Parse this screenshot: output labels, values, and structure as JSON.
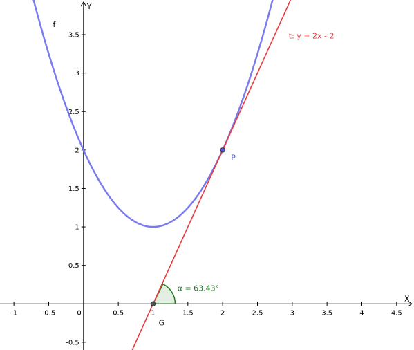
{
  "chart_data": {
    "type": "line",
    "xlabel": "X",
    "ylabel": "Y",
    "xlim": [
      -1.2,
      4.75
    ],
    "ylim": [
      -0.6,
      3.95
    ],
    "x_ticks": [
      "-1",
      "-0.5",
      "0",
      "0.5",
      "1",
      "1.5",
      "2",
      "2.5",
      "3",
      "3.5",
      "4",
      "4.5"
    ],
    "y_ticks": [
      "-0.5",
      "0.5",
      "1",
      "1.5",
      "2",
      "2.5",
      "3",
      "3.5"
    ],
    "series": [
      {
        "name": "f",
        "color": "#7b7bf0",
        "a": 1,
        "h": 1,
        "k": 1
      },
      {
        "name": "t: y = 2x - 2",
        "color": "#e83a3a",
        "slope": 2,
        "intercept": -2
      }
    ],
    "points": [
      {
        "name": "P",
        "x": 2,
        "y": 2,
        "color": "#5a5ae0"
      },
      {
        "name": "G",
        "x": 1,
        "y": 0,
        "color": "#555555"
      }
    ],
    "angle": {
      "label": "α = 63.43°",
      "degrees": 63.43,
      "vertex": "G",
      "color": "#1f7a1f"
    },
    "grid": false
  }
}
